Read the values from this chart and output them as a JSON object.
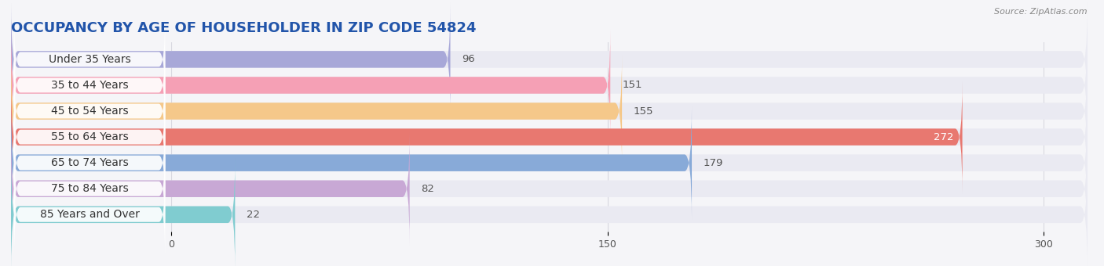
{
  "title": "OCCUPANCY BY AGE OF HOUSEHOLDER IN ZIP CODE 54824",
  "source": "Source: ZipAtlas.com",
  "categories": [
    "Under 35 Years",
    "35 to 44 Years",
    "45 to 54 Years",
    "55 to 64 Years",
    "65 to 74 Years",
    "75 to 84 Years",
    "85 Years and Over"
  ],
  "values": [
    96,
    151,
    155,
    272,
    179,
    82,
    22
  ],
  "bar_colors": [
    "#a8a8d8",
    "#f5a0b5",
    "#f5c88a",
    "#e87870",
    "#88aad8",
    "#c8a8d5",
    "#80ccd0"
  ],
  "bar_bg_color": "#eaeaf2",
  "label_bg_color": "#ffffff",
  "xlim_data_min": -55,
  "xlim_data_max": 315,
  "data_zero": 0,
  "data_max": 300,
  "xticks": [
    0,
    150,
    300
  ],
  "title_fontsize": 13,
  "label_fontsize": 10,
  "value_fontsize": 9.5,
  "bar_height": 0.65,
  "background_color": "#f5f5f8",
  "grid_color": "#d8d8e0",
  "value_color_inside": "#ffffff",
  "value_color_outside": "#555555",
  "title_color": "#2255aa",
  "source_color": "#888888"
}
